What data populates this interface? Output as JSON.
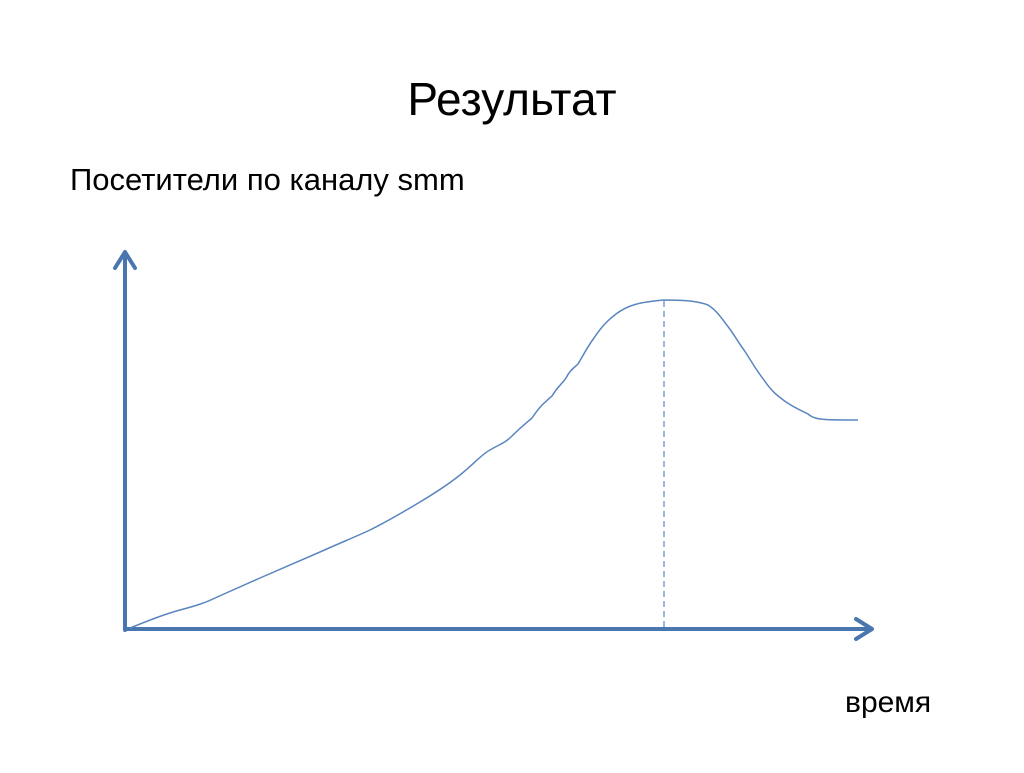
{
  "header": {
    "title": "Результат",
    "subtitle": "Посетители по каналу smm"
  },
  "diagram": {
    "x_axis_label": "время"
  }
}
